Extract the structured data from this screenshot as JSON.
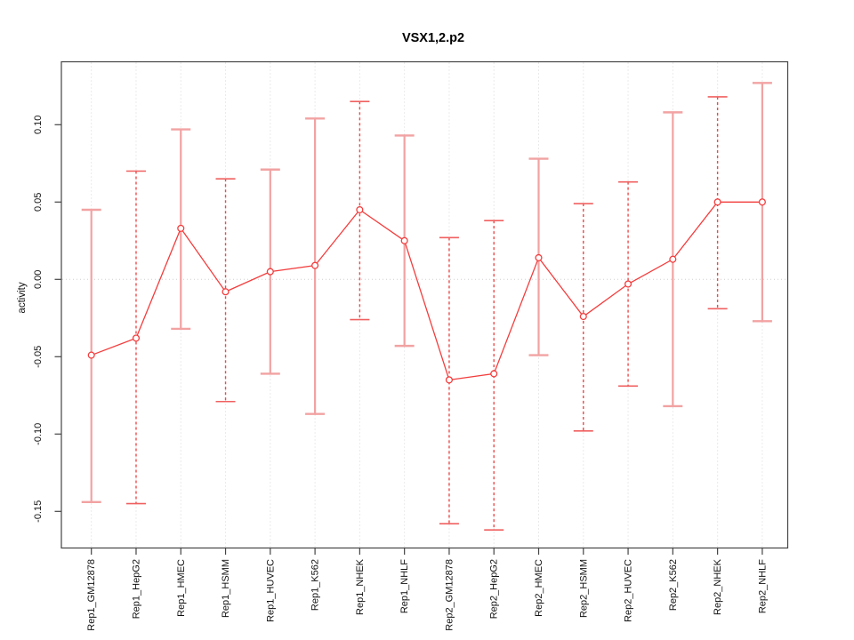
{
  "chart_data": {
    "type": "line",
    "title": "VSX1,2.p2",
    "xlabel": "",
    "ylabel": "activity",
    "ylim": [
      -0.173,
      0.141
    ],
    "grid": "vertical dotted gridline at each category; dotted horizontal line at y=0; full box border; no legend",
    "legend_position": "none",
    "ytick_labels": [
      "0.10",
      "0.05",
      "0.00",
      "-0.05",
      "-0.10",
      "-0.15"
    ],
    "ytick_values": [
      0.1,
      0.05,
      0.0,
      -0.05,
      -0.1,
      -0.15
    ],
    "categories": [
      "Rep1_GM12878",
      "Rep1_HepG2",
      "Rep1_HMEC",
      "Rep1_HSMM",
      "Rep1_HUVEC",
      "Rep1_K562",
      "Rep1_NHEK",
      "Rep1_NHLF",
      "Rep2_GM12878",
      "Rep2_HepG2",
      "Rep2_HMEC",
      "Rep2_HSMM",
      "Rep2_HUVEC",
      "Rep2_K562",
      "Rep2_NHEK",
      "Rep2_NHLF"
    ],
    "series": [
      {
        "name": "activity",
        "marker": "open-circle",
        "values": [
          -0.049,
          -0.038,
          0.033,
          -0.008,
          0.005,
          0.009,
          0.045,
          0.025,
          -0.065,
          -0.061,
          0.014,
          -0.024,
          -0.003,
          0.013,
          0.05,
          0.05
        ],
        "error_upper": [
          0.045,
          0.07,
          0.097,
          0.065,
          0.071,
          0.104,
          0.115,
          0.093,
          0.027,
          0.038,
          0.078,
          0.049,
          0.063,
          0.108,
          0.118,
          0.127
        ],
        "error_lower": [
          -0.144,
          -0.145,
          -0.032,
          -0.079,
          -0.061,
          -0.087,
          -0.026,
          -0.043,
          -0.158,
          -0.162,
          -0.049,
          -0.098,
          -0.069,
          -0.082,
          -0.019,
          -0.027
        ],
        "error_bar_styles": [
          "solid",
          "dashed",
          "solid",
          "dashed",
          "solid",
          "solid",
          "dashed",
          "solid",
          "dashed",
          "dashed",
          "solid",
          "dashed",
          "dashed",
          "solid",
          "dashed",
          "solid"
        ]
      }
    ],
    "colors": {
      "series_line": "#f33d3d",
      "marker_stroke": "#f33d3d",
      "errorbar_solid": "#f2a2a2",
      "errorbar_dashed": "#ef4848",
      "errorbar_cap": "#f2a2a2",
      "gridline": "#d6d6d6",
      "zero_line": "#cfcfcf",
      "axis_box": "#444444",
      "tick_text": "#111111"
    }
  }
}
